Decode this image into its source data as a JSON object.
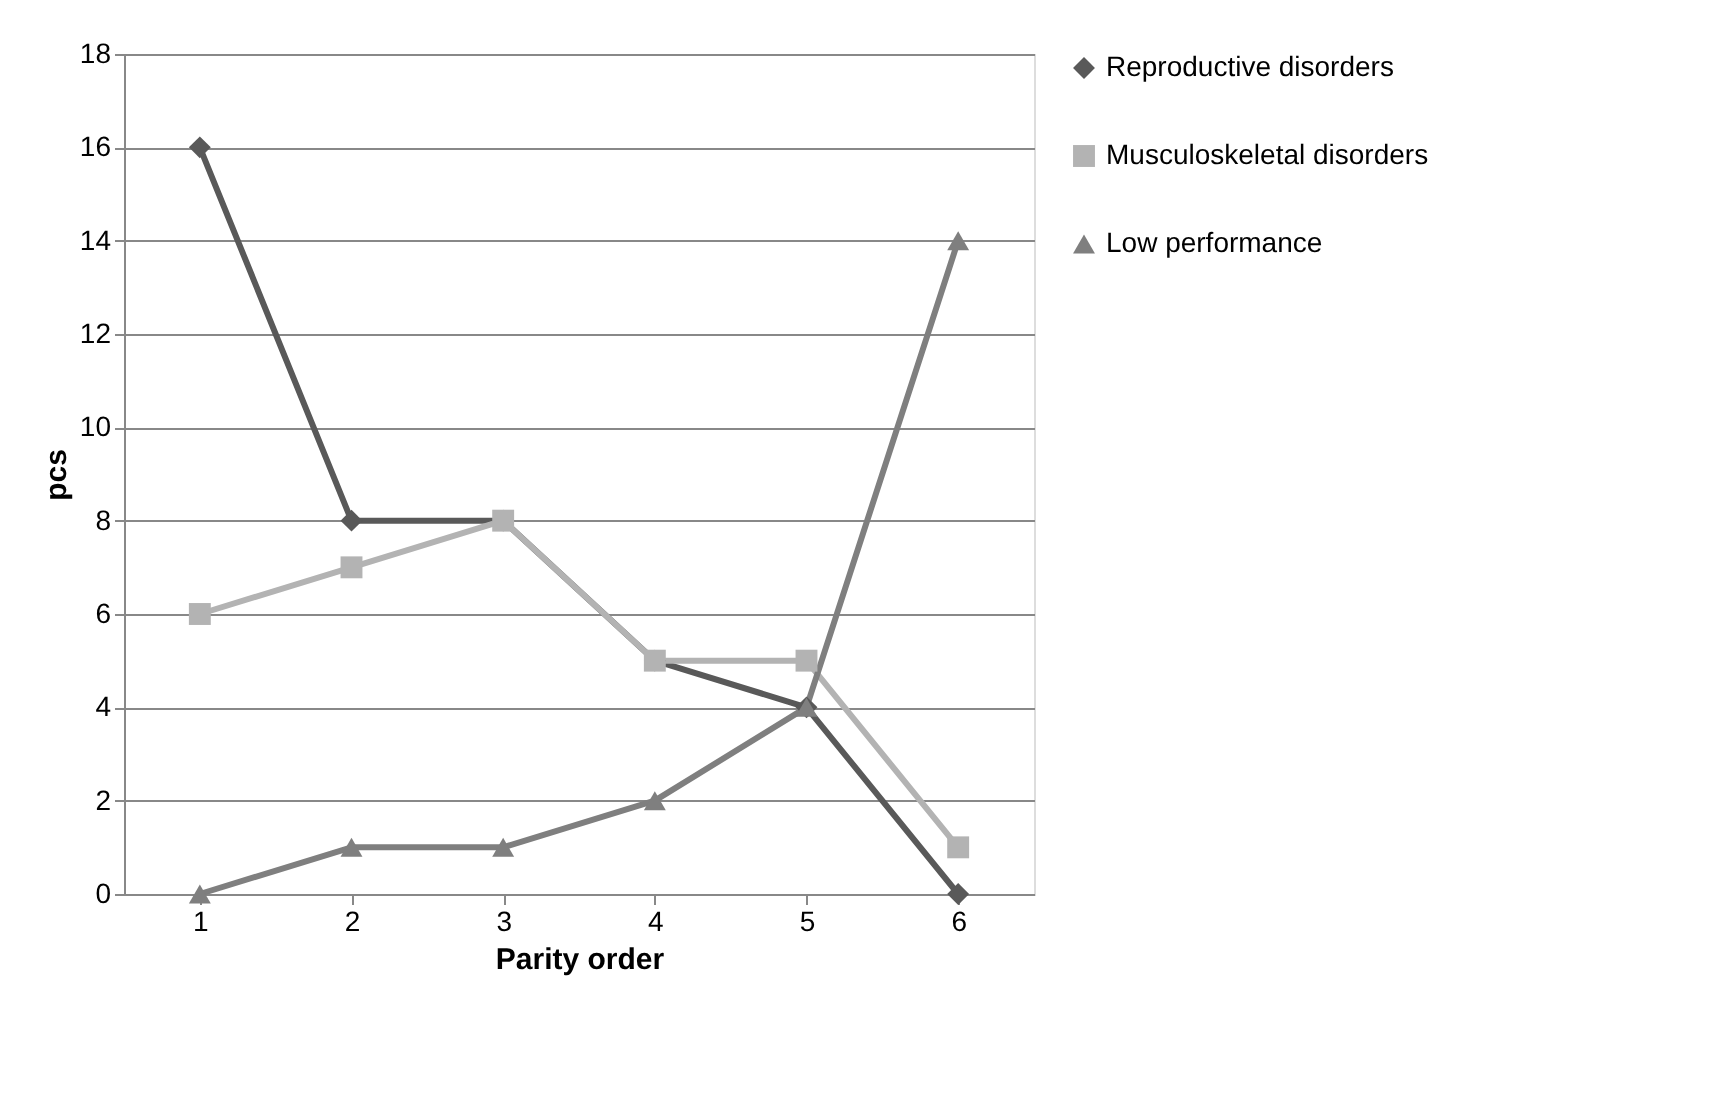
{
  "chart_data": {
    "type": "line",
    "xlabel": "Parity order",
    "ylabel": "pcs",
    "categories": [
      "1",
      "2",
      "3",
      "4",
      "5",
      "6"
    ],
    "series": [
      {
        "name": "Reproductive disorders",
        "color": "#595959",
        "marker": "diamond",
        "values": [
          16,
          8,
          8,
          5,
          4,
          0
        ]
      },
      {
        "name": "Musculoskeletal disorders",
        "color": "#b3b3b3",
        "marker": "square",
        "values": [
          6,
          7,
          8,
          5,
          5,
          1
        ]
      },
      {
        "name": "Low performance",
        "color": "#7f7f7f",
        "marker": "triangle",
        "values": [
          0,
          1,
          1,
          2,
          4,
          14
        ]
      }
    ],
    "ylim": [
      0,
      18
    ],
    "yticks": [
      0,
      2,
      4,
      6,
      8,
      10,
      12,
      14,
      16,
      18
    ],
    "grid": "y",
    "legend": "right"
  }
}
